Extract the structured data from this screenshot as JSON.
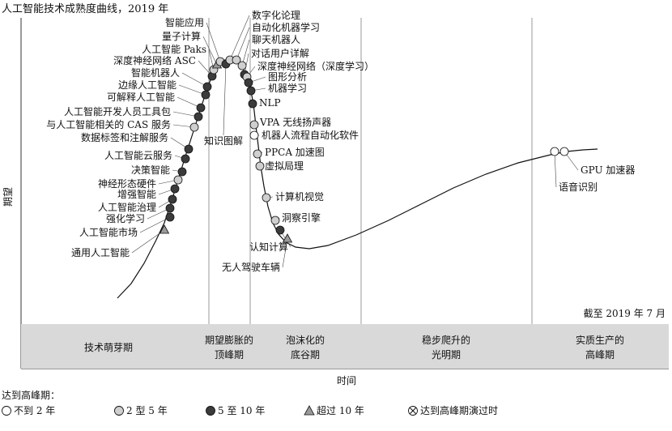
{
  "chart_data": {
    "type": "line",
    "title": "人工智能技术成熟度曲线，2019 年",
    "xlabel": "时间",
    "ylabel": "期望",
    "as_of": "截至 2019 年 7 月",
    "phases": [
      "技术萌芽期",
      "期望膨胀的\n顶峰期",
      "泡沫化的\n底谷期",
      "稳步爬升的\n光明期",
      "实质生产的\n高峰期"
    ],
    "legend": {
      "title": "达到高峰期：",
      "items": [
        {
          "marker": "white-circle",
          "label": "不到 2 年",
          "color": "#ffffff"
        },
        {
          "marker": "light-grey-circle",
          "label": "2 型 5 年",
          "color": "#cfcfcf"
        },
        {
          "marker": "dark-circle",
          "label": "5 至 10 年",
          "color": "#3b3b3b"
        },
        {
          "marker": "grey-triangle",
          "label": "超过 10 年",
          "color": "#9a9a9a"
        },
        {
          "marker": "crossed-circle",
          "label": "达到高峰期演过时",
          "color": "#ffffff"
        }
      ]
    },
    "technologies": [
      {
        "name": "通用人工智能",
        "t": 0.275,
        "marker": "triangle"
      },
      {
        "name": "人工智能市场",
        "t": 0.305,
        "marker": "dark"
      },
      {
        "name": "强化学习",
        "t": 0.32,
        "marker": "dark"
      },
      {
        "name": "人工智能治理",
        "t": 0.335,
        "marker": "dark"
      },
      {
        "name": "增强智能",
        "t": 0.35,
        "marker": "dark"
      },
      {
        "name": "神经形态硬件",
        "t": 0.365,
        "marker": "light"
      },
      {
        "name": "决策智能",
        "t": 0.38,
        "marker": "dark"
      },
      {
        "name": "人工智能云服务",
        "t": 0.405,
        "marker": "dark"
      },
      {
        "name": "数据标签和注解服务",
        "t": 0.43,
        "marker": "dark"
      },
      {
        "name": "与人工智能相关的 CAS 服务",
        "t": 0.445,
        "marker": "light"
      },
      {
        "name": "人工智能开发人员工具包",
        "t": 0.46,
        "marker": "dark"
      },
      {
        "name": "可解释人工智能",
        "t": 0.475,
        "marker": "dark"
      },
      {
        "name": "边缘人工智能",
        "t": 0.49,
        "marker": "dark"
      },
      {
        "name": "智能机器人",
        "t": 0.51,
        "marker": "dark"
      },
      {
        "name": "深度神经网络 ASC",
        "t": 0.525,
        "marker": "dark"
      },
      {
        "name": "人工智能 Paks",
        "t": 0.54,
        "marker": "light"
      },
      {
        "name": "量子计算",
        "t": 0.555,
        "marker": "triangle"
      },
      {
        "name": "智能应用",
        "t": 0.575,
        "marker": "light"
      },
      {
        "name": "知识图解",
        "t": 0.56,
        "marker": "dark"
      },
      {
        "name": "数字化论理",
        "t": 0.595,
        "marker": "light"
      },
      {
        "name": "自动化机器学习",
        "t": 0.61,
        "marker": "light"
      },
      {
        "name": "聊天机器人",
        "t": 0.625,
        "marker": "light"
      },
      {
        "name": "对话用户详解",
        "t": 0.64,
        "marker": "dark"
      },
      {
        "name": "深度神经网络（深度学习）",
        "t": 0.655,
        "marker": "light"
      },
      {
        "name": "图形分析",
        "t": 0.67,
        "marker": "dark"
      },
      {
        "name": "机器学习",
        "t": 0.685,
        "marker": "dark"
      },
      {
        "name": "NLP",
        "t": 0.71,
        "marker": "dark"
      },
      {
        "name": "VPA 无线扬声器",
        "t": 0.73,
        "marker": "light"
      },
      {
        "name": "机器人流程自动化软件",
        "t": 0.745,
        "marker": "white"
      },
      {
        "name": "PPCA 加速图",
        "t": 0.765,
        "marker": "light"
      },
      {
        "name": "虚拟局理",
        "t": 0.78,
        "marker": "light"
      },
      {
        "name": "计算机视觉",
        "t": 0.82,
        "marker": "light"
      },
      {
        "name": "洞察引擎",
        "t": 0.85,
        "marker": "light"
      },
      {
        "name": "认知计算",
        "t": 0.87,
        "marker": "dark"
      },
      {
        "name": "无人驾驶车辆",
        "t": 0.88,
        "marker": "triangle"
      },
      {
        "name": "GPU 加速器",
        "t": 0.95,
        "marker": "white"
      },
      {
        "name": "语音识别",
        "t": 0.94,
        "marker": "white"
      }
    ]
  }
}
